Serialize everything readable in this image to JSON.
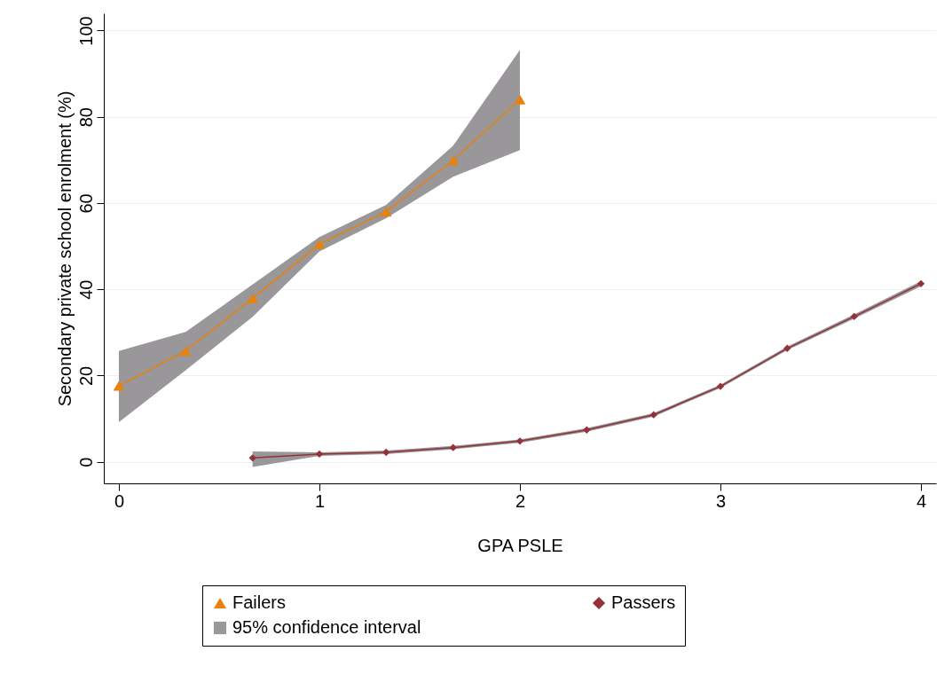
{
  "chart_data": {
    "type": "line",
    "xlabel": "GPA PSLE",
    "ylabel": "Secondary private school enrolment (%)",
    "xlim": [
      -0.075,
      4.075
    ],
    "xticks": [
      0,
      1,
      2,
      3,
      4
    ],
    "ylim": [
      -5,
      104
    ],
    "yticks": [
      0,
      20,
      40,
      60,
      80,
      100
    ],
    "grid": "y",
    "legend": "bottom",
    "annotations": [
      "95% confidence interval"
    ],
    "series": [
      {
        "name": "Failers",
        "color": "#e8820c",
        "marker": "triangle",
        "x": [
          0,
          0.333,
          0.667,
          1,
          1.333,
          1.667,
          2
        ],
        "values": [
          17.6,
          25.7,
          37.9,
          50.5,
          58.0,
          69.9,
          84.0
        ],
        "lower": [
          9.2,
          21.2,
          33.6,
          48.8,
          56.5,
          66.1,
          72.3
        ],
        "upper": [
          25.7,
          30.1,
          41.1,
          52.1,
          59.6,
          73.3,
          95.5
        ]
      },
      {
        "name": "Passers",
        "color": "#93323a",
        "marker": "diamond",
        "x": [
          0.667,
          1,
          1.333,
          1.667,
          2,
          2.333,
          2.667,
          3,
          3.333,
          3.667,
          4
        ],
        "values": [
          0.9,
          1.8,
          2.2,
          3.3,
          4.8,
          7.4,
          10.9,
          17.5,
          26.3,
          33.7,
          41.3
        ],
        "lower": [
          -1.2,
          1.4,
          1.8,
          2.9,
          4.4,
          7.0,
          10.5,
          17.1,
          25.9,
          33.2,
          40.7
        ],
        "upper": [
          2.4,
          2.2,
          2.6,
          3.7,
          5.2,
          7.8,
          11.3,
          17.9,
          26.7,
          34.2,
          41.9
        ]
      }
    ]
  }
}
